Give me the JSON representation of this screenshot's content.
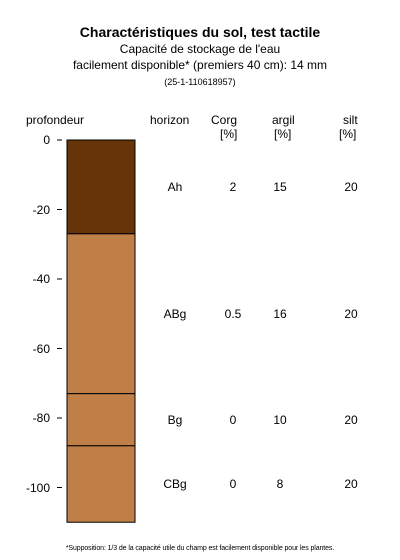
{
  "title": "Charactéristiques du sol, test tactile",
  "subtitle_line1": "Capacité de stockage de l'eau",
  "subtitle_line2": "facilement disponible* (premiers 40 cm): 14 mm",
  "sample_id": "(25-1-110618957)",
  "columns": {
    "depth": "profondeur",
    "horizon": "horizon",
    "corg": "Corg",
    "corg_unit": "[%]",
    "clay": "argil",
    "clay_unit": "[%]",
    "silt": "silt",
    "silt_unit": "[%]"
  },
  "footnote": "*Supposition: 1/3 de la capacité utile du champ est facilement disponible pour les plantes.",
  "colors": {
    "topsoil": "#663408",
    "subsoil": "#BF7F47",
    "line": "#000000"
  },
  "chart_data": {
    "type": "table",
    "ylabel": "profondeur",
    "ylim": [
      -110,
      0
    ],
    "yticks": [
      0,
      -20,
      -40,
      -60,
      -80,
      -100
    ],
    "ytick_labels": [
      "0",
      "-20",
      "-40",
      "-60",
      "-80",
      "-100"
    ],
    "horizons": [
      {
        "name": "Ah",
        "top": 0,
        "bottom": -27,
        "color": "#663408",
        "corg": "2",
        "clay": "15",
        "silt": "20"
      },
      {
        "name": "ABg",
        "top": -27,
        "bottom": -73,
        "color": "#BF7F47",
        "corg": "0.5",
        "clay": "16",
        "silt": "20"
      },
      {
        "name": "Bg",
        "top": -73,
        "bottom": -88,
        "color": "#BF7F47",
        "corg": "0",
        "clay": "10",
        "silt": "20"
      },
      {
        "name": "CBg",
        "top": -88,
        "bottom": -110,
        "color": "#BF7F47",
        "corg": "0",
        "clay": "8",
        "silt": "20"
      }
    ]
  }
}
